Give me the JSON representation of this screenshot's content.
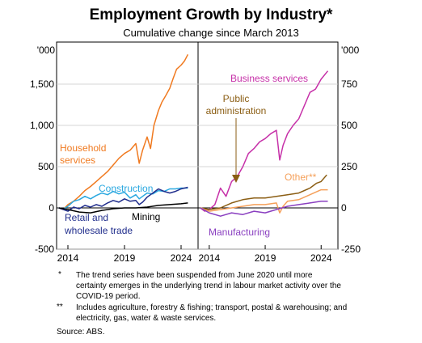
{
  "chart_data": {
    "type": "line",
    "title": "Employment Growth by Industry*",
    "subtitle": "Cumulative change since March 2013",
    "panels": [
      {
        "unit_label": "'000",
        "y_ticks": [
          "1,500",
          "1,000",
          "500",
          "0",
          "-500"
        ],
        "ylim": [
          -500,
          2000
        ],
        "xlim": [
          2013,
          2025.5
        ],
        "x_ticks": [
          "2014",
          "2019",
          "2024"
        ],
        "series": [
          {
            "name": "Household services",
            "label": "Household\nservices",
            "color": "#f07a20",
            "points": [
              [
                2013.2,
                0
              ],
              [
                2013.6,
                -20
              ],
              [
                2014,
                40
              ],
              [
                2014.5,
                80
              ],
              [
                2015,
                140
              ],
              [
                2015.5,
                210
              ],
              [
                2016,
                260
              ],
              [
                2016.5,
                320
              ],
              [
                2017,
                380
              ],
              [
                2017.5,
                440
              ],
              [
                2018,
                520
              ],
              [
                2018.5,
                600
              ],
              [
                2019,
                660
              ],
              [
                2019.5,
                700
              ],
              [
                2020,
                780
              ],
              [
                2020.3,
                540
              ],
              [
                2020.6,
                700
              ],
              [
                2021,
                860
              ],
              [
                2021.3,
                720
              ],
              [
                2021.6,
                1000
              ],
              [
                2022,
                1180
              ],
              [
                2022.3,
                1280
              ],
              [
                2022.6,
                1350
              ],
              [
                2023,
                1450
              ],
              [
                2023.3,
                1570
              ],
              [
                2023.6,
                1680
              ],
              [
                2024,
                1730
              ],
              [
                2024.3,
                1780
              ],
              [
                2024.6,
                1860
              ]
            ]
          },
          {
            "name": "Construction",
            "label": "Construction",
            "color": "#2aa8e0",
            "points": [
              [
                2013.2,
                0
              ],
              [
                2013.6,
                -15
              ],
              [
                2014,
                20
              ],
              [
                2014.5,
                80
              ],
              [
                2015,
                100
              ],
              [
                2015.5,
                140
              ],
              [
                2016,
                110
              ],
              [
                2016.5,
                150
              ],
              [
                2017,
                180
              ],
              [
                2017.5,
                160
              ],
              [
                2018,
                200
              ],
              [
                2018.5,
                170
              ],
              [
                2019,
                190
              ],
              [
                2019.5,
                120
              ],
              [
                2020,
                160
              ],
              [
                2020.3,
                110
              ],
              [
                2020.6,
                140
              ],
              [
                2021,
                180
              ],
              [
                2021.5,
                170
              ],
              [
                2022,
                210
              ],
              [
                2022.5,
                200
              ],
              [
                2023,
                230
              ],
              [
                2023.5,
                230
              ],
              [
                2024,
                240
              ],
              [
                2024.6,
                240
              ]
            ]
          },
          {
            "name": "Retail and wholesale trade",
            "label": "Retail and\nwholesale trade",
            "color": "#202d8c",
            "points": [
              [
                2013.2,
                0
              ],
              [
                2013.6,
                -20
              ],
              [
                2014,
                -40
              ],
              [
                2014.5,
                10
              ],
              [
                2015,
                -10
              ],
              [
                2015.5,
                30
              ],
              [
                2016,
                10
              ],
              [
                2016.5,
                40
              ],
              [
                2017,
                20
              ],
              [
                2017.5,
                60
              ],
              [
                2018,
                90
              ],
              [
                2018.5,
                70
              ],
              [
                2019,
                110
              ],
              [
                2019.5,
                80
              ],
              [
                2020,
                90
              ],
              [
                2020.3,
                40
              ],
              [
                2020.6,
                70
              ],
              [
                2021,
                130
              ],
              [
                2021.5,
                180
              ],
              [
                2022,
                230
              ],
              [
                2022.5,
                200
              ],
              [
                2023,
                180
              ],
              [
                2023.5,
                200
              ],
              [
                2024,
                230
              ],
              [
                2024.6,
                250
              ]
            ]
          },
          {
            "name": "Mining",
            "label": "Mining",
            "color": "#000000",
            "points": [
              [
                2013.2,
                0
              ],
              [
                2014,
                -20
              ],
              [
                2015,
                -50
              ],
              [
                2016,
                -60
              ],
              [
                2017,
                -30
              ],
              [
                2018,
                -10
              ],
              [
                2019,
                0
              ],
              [
                2020,
                0
              ],
              [
                2021,
                10
              ],
              [
                2022,
                30
              ],
              [
                2023,
                40
              ],
              [
                2024,
                50
              ],
              [
                2024.6,
                60
              ]
            ]
          }
        ]
      },
      {
        "unit_label": "'000",
        "y_ticks": [
          "750",
          "500",
          "250",
          "0",
          "-250"
        ],
        "ylim": [
          -250,
          1000
        ],
        "xlim": [
          2013,
          2025.5
        ],
        "x_ticks": [
          "2014",
          "2019",
          "2024"
        ],
        "series": [
          {
            "name": "Business services",
            "label": "Business services",
            "color": "#c630a8",
            "points": [
              [
                2013.2,
                0
              ],
              [
                2013.6,
                -20
              ],
              [
                2014,
                -10
              ],
              [
                2014.5,
                20
              ],
              [
                2015,
                120
              ],
              [
                2015.5,
                70
              ],
              [
                2016,
                160
              ],
              [
                2016.5,
                190
              ],
              [
                2017,
                250
              ],
              [
                2017.5,
                330
              ],
              [
                2018,
                360
              ],
              [
                2018.5,
                400
              ],
              [
                2019,
                420
              ],
              [
                2019.5,
                450
              ],
              [
                2020,
                470
              ],
              [
                2020.3,
                290
              ],
              [
                2020.6,
                380
              ],
              [
                2021,
                450
              ],
              [
                2021.5,
                500
              ],
              [
                2022,
                540
              ],
              [
                2022.5,
                620
              ],
              [
                2023,
                700
              ],
              [
                2023.5,
                720
              ],
              [
                2024,
                780
              ],
              [
                2024.6,
                830
              ]
            ]
          },
          {
            "name": "Public administration",
            "label": "Public\nadministration",
            "color": "#8b5e14",
            "points": [
              [
                2013.2,
                0
              ],
              [
                2014,
                -10
              ],
              [
                2015,
                0
              ],
              [
                2016,
                30
              ],
              [
                2017,
                50
              ],
              [
                2018,
                60
              ],
              [
                2019,
                60
              ],
              [
                2020,
                70
              ],
              [
                2021,
                80
              ],
              [
                2022,
                90
              ],
              [
                2023,
                120
              ],
              [
                2023.6,
                150
              ],
              [
                2024,
                160
              ],
              [
                2024.5,
                200
              ]
            ]
          },
          {
            "name": "Other",
            "label": "Other**",
            "color": "#f5a05a",
            "points": [
              [
                2013.2,
                0
              ],
              [
                2014,
                -20
              ],
              [
                2015,
                -10
              ],
              [
                2016,
                0
              ],
              [
                2017,
                10
              ],
              [
                2018,
                20
              ],
              [
                2019,
                20
              ],
              [
                2020,
                30
              ],
              [
                2020.3,
                -30
              ],
              [
                2020.6,
                10
              ],
              [
                2021,
                40
              ],
              [
                2022,
                50
              ],
              [
                2023,
                80
              ],
              [
                2024,
                110
              ],
              [
                2024.6,
                110
              ]
            ]
          },
          {
            "name": "Manufacturing",
            "label": "Manufacturing",
            "color": "#8a3fc0",
            "points": [
              [
                2013.2,
                0
              ],
              [
                2014,
                -30
              ],
              [
                2015,
                -50
              ],
              [
                2016,
                -30
              ],
              [
                2017,
                -40
              ],
              [
                2018,
                -20
              ],
              [
                2019,
                -30
              ],
              [
                2020,
                -10
              ],
              [
                2021,
                10
              ],
              [
                2022,
                20
              ],
              [
                2023,
                30
              ],
              [
                2024,
                40
              ],
              [
                2024.6,
                40
              ]
            ]
          }
        ]
      }
    ]
  },
  "footnotes": {
    "star_mark": "*",
    "star_text": "The trend series have been suspended from June 2020 until more certainty emerges in the underlying trend in labour market activity over the COVID-19 period.",
    "double_star_mark": "**",
    "double_star_text": "Includes agriculture, forestry & fishing; transport, postal & warehousing; and electricity, gas, water & waste services.",
    "source": "Source:   ABS."
  }
}
